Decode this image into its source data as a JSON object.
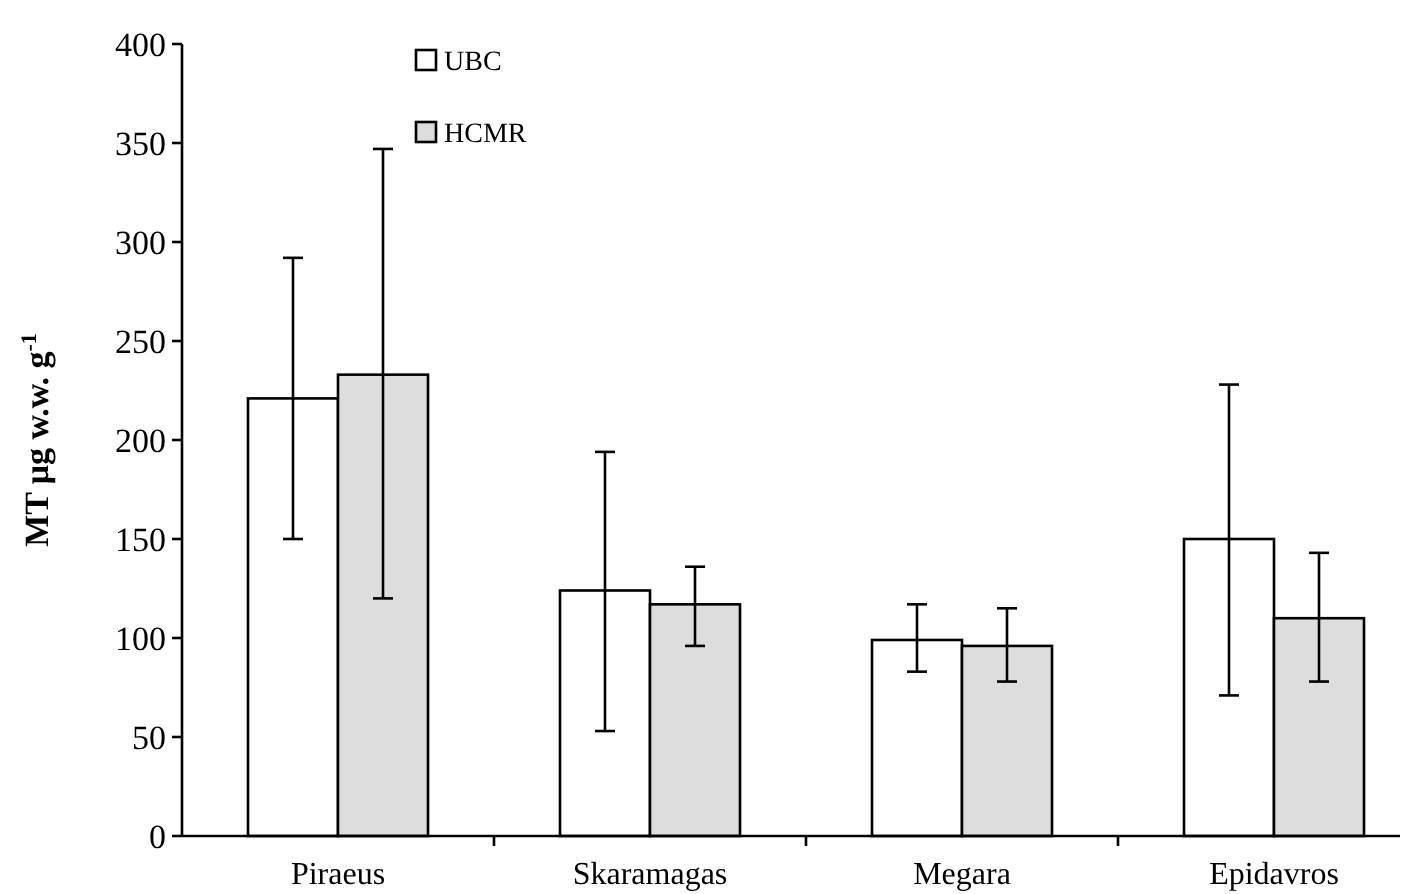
{
  "chart_data": {
    "type": "bar",
    "ylabel": "MT μg w.w. g$^{-1}$",
    "categories": [
      "Piraeus",
      "Skaramagas",
      "Megara",
      "Epidavros"
    ],
    "series": [
      {
        "name": "UBC",
        "color": "#ffffff",
        "values": [
          221,
          124,
          99,
          150
        ],
        "errors": [
          [
            150,
            292
          ],
          [
            53,
            194
          ],
          [
            83,
            117
          ],
          [
            71,
            228
          ]
        ]
      },
      {
        "name": "HCMR",
        "color": "#dddddd",
        "values": [
          233,
          117,
          96,
          110
        ],
        "errors": [
          [
            120,
            347
          ],
          [
            96,
            136
          ],
          [
            78,
            115
          ],
          [
            78,
            143
          ]
        ]
      }
    ],
    "ylim": [
      0,
      400
    ],
    "yticks": [
      0,
      50,
      100,
      150,
      200,
      250,
      300,
      350,
      400
    ],
    "legend": "top left",
    "grid": false
  }
}
